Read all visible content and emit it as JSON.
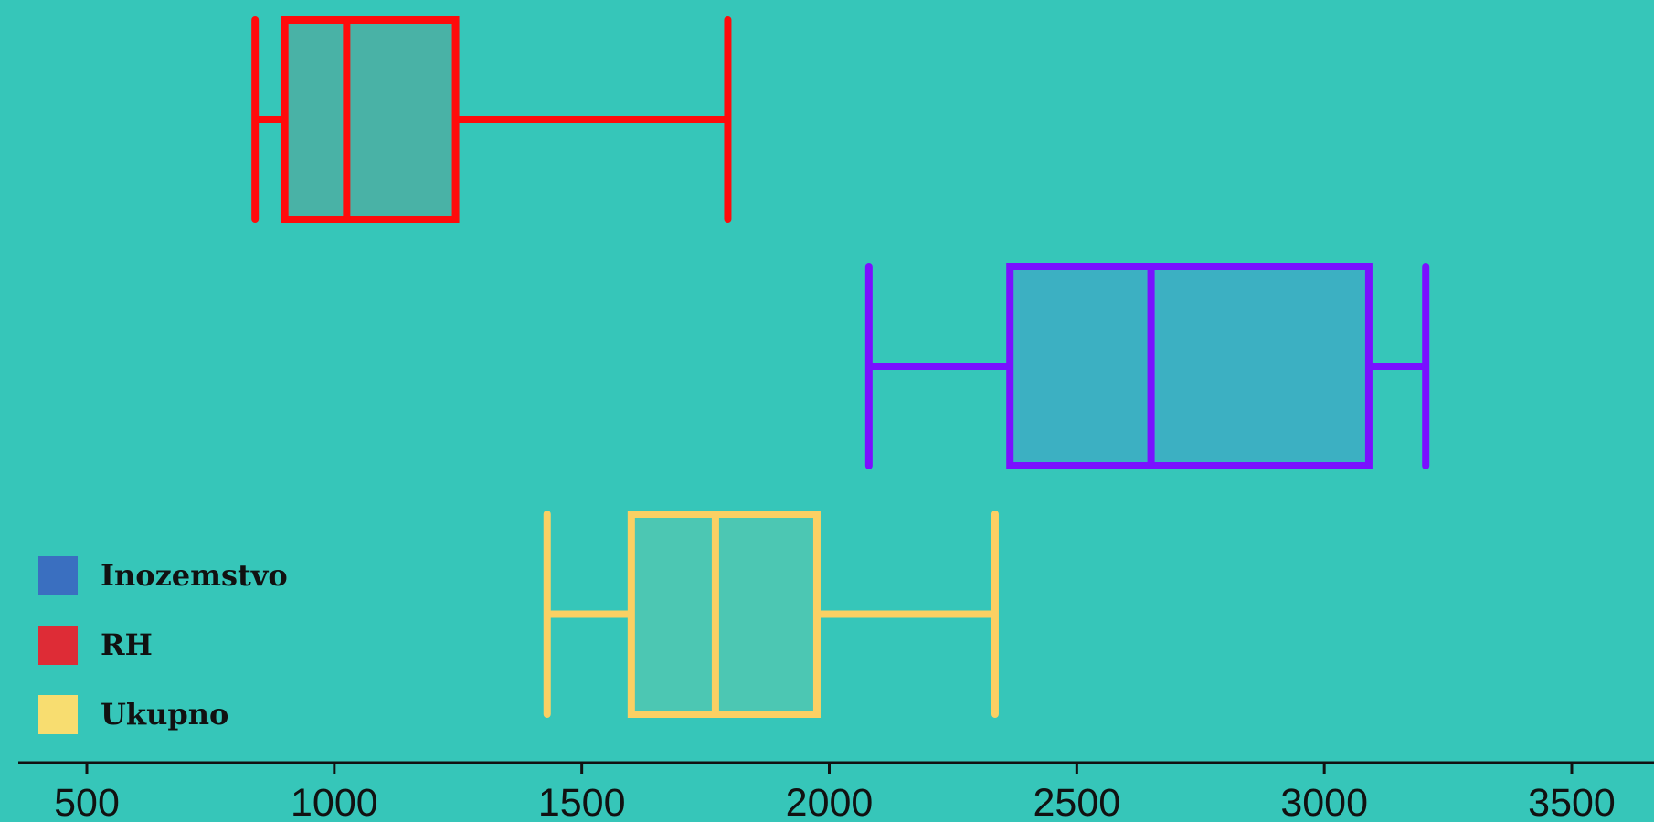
{
  "chart_data": {
    "type": "boxplot",
    "orientation": "horizontal",
    "background": "#36c6b9",
    "xlim": [
      360,
      3650
    ],
    "xticks": [
      500,
      1000,
      1500,
      2000,
      2500,
      3000,
      3500
    ],
    "xtick_labels": [
      "500",
      "1000",
      "1500",
      "2000",
      "2500",
      "3000",
      "3500"
    ],
    "grid": false,
    "legend_position": "bottom-left",
    "series": [
      {
        "name": "RH",
        "color": "#ff0b0b",
        "legend_color": "#de2c36",
        "fill": "#49b2a6",
        "whisker_low": 840,
        "q1": 900,
        "median": 1025,
        "q3": 1245,
        "whisker_high": 1795
      },
      {
        "name": "Inozemstvo",
        "color": "#7a10ff",
        "legend_color": "#3a6fc0",
        "fill": "#3cb0c2",
        "whisker_low": 2080,
        "q1": 2365,
        "median": 2650,
        "q3": 3090,
        "whisker_high": 3205
      },
      {
        "name": "Ukupno",
        "color": "#fbd063",
        "legend_color": "#f8dd70",
        "fill": "#4cc7b3",
        "whisker_low": 1430,
        "q1": 1600,
        "median": 1770,
        "q3": 1975,
        "whisker_high": 2335
      }
    ],
    "legend": [
      {
        "label": "Inozemstvo",
        "color": "#3a6fc0"
      },
      {
        "label": "RH",
        "color": "#de2c36"
      },
      {
        "label": "Ukupno",
        "color": "#f8dd70"
      }
    ]
  }
}
